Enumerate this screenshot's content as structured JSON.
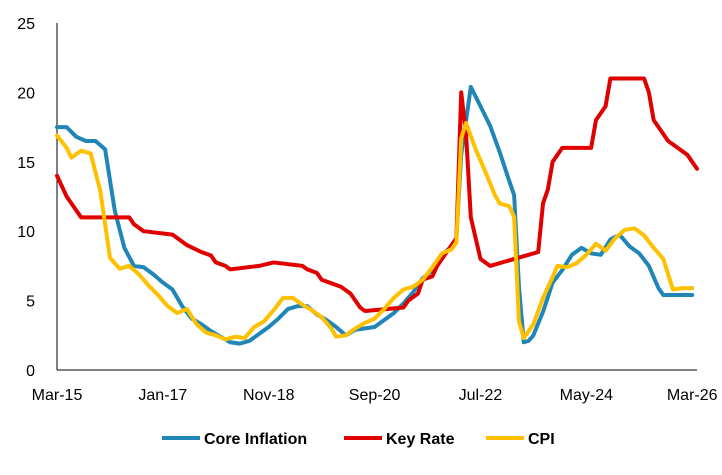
{
  "chart_data": {
    "type": "line",
    "title": "",
    "xlabel": "",
    "ylabel": "",
    "ylim": [
      0,
      25
    ],
    "yticks": [
      0,
      5,
      10,
      15,
      20,
      25
    ],
    "xticks": [
      "Mar-15",
      "Jan-17",
      "Nov-18",
      "Sep-20",
      "Jul-22",
      "May-24",
      "Mar-26"
    ],
    "grid": false,
    "legend_position": "bottom",
    "series": [
      {
        "name": "Core Inflation",
        "color": "#1f86b6",
        "points": [
          [
            "2015-03",
            17.5
          ],
          [
            "2015-05",
            17.5
          ],
          [
            "2015-07",
            16.8
          ],
          [
            "2015-09",
            16.5
          ],
          [
            "2015-11",
            16.5
          ],
          [
            "2016-01",
            15.9
          ],
          [
            "2016-03",
            11.5
          ],
          [
            "2016-05",
            8.8
          ],
          [
            "2016-07",
            7.5
          ],
          [
            "2016-09",
            7.4
          ],
          [
            "2016-11",
            6.9
          ],
          [
            "2017-01",
            6.3
          ],
          [
            "2017-03",
            5.8
          ],
          [
            "2017-05",
            4.6
          ],
          [
            "2017-07",
            3.7
          ],
          [
            "2017-09",
            3.3
          ],
          [
            "2017-11",
            2.8
          ],
          [
            "2018-01",
            2.4
          ],
          [
            "2018-03",
            2.0
          ],
          [
            "2018-05",
            1.9
          ],
          [
            "2018-07",
            2.1
          ],
          [
            "2018-09",
            2.6
          ],
          [
            "2018-11",
            3.1
          ],
          [
            "2019-01",
            3.7
          ],
          [
            "2019-03",
            4.4
          ],
          [
            "2019-05",
            4.6
          ],
          [
            "2019-07",
            4.6
          ],
          [
            "2019-09",
            4.0
          ],
          [
            "2019-11",
            3.6
          ],
          [
            "2020-01",
            3.1
          ],
          [
            "2020-03",
            2.5
          ],
          [
            "2020-05",
            2.9
          ],
          [
            "2020-07",
            3.0
          ],
          [
            "2020-09",
            3.1
          ],
          [
            "2020-11",
            3.6
          ],
          [
            "2021-01",
            4.1
          ],
          [
            "2021-03",
            4.8
          ],
          [
            "2021-05",
            5.6
          ],
          [
            "2021-07",
            6.6
          ],
          [
            "2021-09",
            7.2
          ],
          [
            "2021-11",
            8.3
          ],
          [
            "2022-01",
            8.9
          ],
          [
            "2022-02",
            9.5
          ],
          [
            "2022-03",
            15.5
          ],
          [
            "2022-05",
            20.4
          ],
          [
            "2022-07",
            19.0
          ],
          [
            "2022-09",
            17.6
          ],
          [
            "2022-11",
            15.7
          ],
          [
            "2023-01",
            13.6
          ],
          [
            "2023-02",
            12.6
          ],
          [
            "2023-03",
            6.0
          ],
          [
            "2023-04",
            2.0
          ],
          [
            "2023-05",
            2.1
          ],
          [
            "2023-06",
            2.5
          ],
          [
            "2023-08",
            4.2
          ],
          [
            "2023-10",
            6.3
          ],
          [
            "2023-12",
            7.2
          ],
          [
            "2024-02",
            8.3
          ],
          [
            "2024-04",
            8.8
          ],
          [
            "2024-06",
            8.4
          ],
          [
            "2024-08",
            8.3
          ],
          [
            "2024-10",
            9.4
          ],
          [
            "2024-11",
            9.6
          ],
          [
            "2024-12",
            9.7
          ],
          [
            "2025-02",
            8.9
          ],
          [
            "2025-04",
            8.4
          ],
          [
            "2025-06",
            7.5
          ],
          [
            "2025-08",
            5.9
          ],
          [
            "2025-09",
            5.4
          ],
          [
            "2026-03",
            5.4
          ]
        ]
      },
      {
        "name": "Key Rate",
        "color": "#e10000",
        "points": [
          [
            "2015-03",
            14.0
          ],
          [
            "2015-05",
            12.5
          ],
          [
            "2015-07",
            11.5
          ],
          [
            "2015-08",
            11.0
          ],
          [
            "2016-06",
            11.0
          ],
          [
            "2016-07",
            10.5
          ],
          [
            "2016-09",
            10.0
          ],
          [
            "2017-03",
            9.75
          ],
          [
            "2017-05",
            9.25
          ],
          [
            "2017-06",
            9.0
          ],
          [
            "2017-09",
            8.5
          ],
          [
            "2017-11",
            8.25
          ],
          [
            "2017-12",
            7.75
          ],
          [
            "2018-02",
            7.5
          ],
          [
            "2018-03",
            7.25
          ],
          [
            "2018-09",
            7.5
          ],
          [
            "2018-12",
            7.75
          ],
          [
            "2019-06",
            7.5
          ],
          [
            "2019-07",
            7.25
          ],
          [
            "2019-09",
            7.0
          ],
          [
            "2019-10",
            6.5
          ],
          [
            "2019-12",
            6.25
          ],
          [
            "2020-02",
            6.0
          ],
          [
            "2020-04",
            5.5
          ],
          [
            "2020-06",
            4.5
          ],
          [
            "2020-07",
            4.25
          ],
          [
            "2021-03",
            4.5
          ],
          [
            "2021-04",
            5.0
          ],
          [
            "2021-06",
            5.5
          ],
          [
            "2021-07",
            6.5
          ],
          [
            "2021-09",
            6.75
          ],
          [
            "2021-10",
            7.5
          ],
          [
            "2021-12",
            8.5
          ],
          [
            "2022-02",
            9.5
          ],
          [
            "2022-03",
            20.0
          ],
          [
            "2022-04",
            17.0
          ],
          [
            "2022-05",
            11.0
          ],
          [
            "2022-06",
            9.5
          ],
          [
            "2022-07",
            8.0
          ],
          [
            "2022-09",
            7.5
          ],
          [
            "2023-07",
            8.5
          ],
          [
            "2023-08",
            12.0
          ],
          [
            "2023-09",
            13.0
          ],
          [
            "2023-10",
            15.0
          ],
          [
            "2023-12",
            16.0
          ],
          [
            "2024-06",
            16.0
          ],
          [
            "2024-07",
            18.0
          ],
          [
            "2024-09",
            19.0
          ],
          [
            "2024-10",
            21.0
          ],
          [
            "2025-05",
            21.0
          ],
          [
            "2025-06",
            20.0
          ],
          [
            "2025-07",
            18.0
          ],
          [
            "2025-09",
            17.0
          ],
          [
            "2025-10",
            16.5
          ],
          [
            "2025-12",
            16.0
          ],
          [
            "2026-02",
            15.5
          ],
          [
            "2026-03",
            15.0
          ],
          [
            "2026-04",
            14.5
          ]
        ]
      },
      {
        "name": "CPI",
        "color": "#ffc000",
        "points": [
          [
            "2015-03",
            16.9
          ],
          [
            "2015-05",
            16.0
          ],
          [
            "2015-06",
            15.3
          ],
          [
            "2015-08",
            15.8
          ],
          [
            "2015-10",
            15.6
          ],
          [
            "2015-12",
            12.9
          ],
          [
            "2016-02",
            8.1
          ],
          [
            "2016-04",
            7.3
          ],
          [
            "2016-06",
            7.5
          ],
          [
            "2016-08",
            6.9
          ],
          [
            "2016-10",
            6.1
          ],
          [
            "2016-12",
            5.4
          ],
          [
            "2017-02",
            4.6
          ],
          [
            "2017-04",
            4.1
          ],
          [
            "2017-06",
            4.4
          ],
          [
            "2017-08",
            3.3
          ],
          [
            "2017-10",
            2.7
          ],
          [
            "2017-12",
            2.5
          ],
          [
            "2018-02",
            2.2
          ],
          [
            "2018-04",
            2.4
          ],
          [
            "2018-06",
            2.3
          ],
          [
            "2018-08",
            3.1
          ],
          [
            "2018-10",
            3.5
          ],
          [
            "2018-12",
            4.3
          ],
          [
            "2019-02",
            5.2
          ],
          [
            "2019-04",
            5.2
          ],
          [
            "2019-06",
            4.7
          ],
          [
            "2019-08",
            4.3
          ],
          [
            "2019-10",
            3.8
          ],
          [
            "2019-12",
            3.0
          ],
          [
            "2020-01",
            2.4
          ],
          [
            "2020-03",
            2.5
          ],
          [
            "2020-05",
            3.0
          ],
          [
            "2020-07",
            3.4
          ],
          [
            "2020-09",
            3.7
          ],
          [
            "2020-11",
            4.4
          ],
          [
            "2021-01",
            5.2
          ],
          [
            "2021-03",
            5.8
          ],
          [
            "2021-05",
            6.0
          ],
          [
            "2021-07",
            6.5
          ],
          [
            "2021-09",
            7.4
          ],
          [
            "2021-11",
            8.4
          ],
          [
            "2022-01",
            8.7
          ],
          [
            "2022-02",
            9.2
          ],
          [
            "2022-03",
            16.7
          ],
          [
            "2022-04",
            17.8
          ],
          [
            "2022-06",
            15.9
          ],
          [
            "2022-08",
            14.3
          ],
          [
            "2022-10",
            12.6
          ],
          [
            "2022-11",
            12.0
          ],
          [
            "2023-01",
            11.8
          ],
          [
            "2023-02",
            11.0
          ],
          [
            "2023-03",
            3.5
          ],
          [
            "2023-04",
            2.3
          ],
          [
            "2023-06",
            3.3
          ],
          [
            "2023-08",
            5.2
          ],
          [
            "2023-10",
            6.7
          ],
          [
            "2023-11",
            7.5
          ],
          [
            "2024-01",
            7.4
          ],
          [
            "2024-03",
            7.7
          ],
          [
            "2024-05",
            8.3
          ],
          [
            "2024-07",
            9.1
          ],
          [
            "2024-09",
            8.6
          ],
          [
            "2024-11",
            9.5
          ],
          [
            "2025-01",
            10.1
          ],
          [
            "2025-03",
            10.2
          ],
          [
            "2025-05",
            9.7
          ],
          [
            "2025-07",
            8.8
          ],
          [
            "2025-09",
            8.0
          ],
          [
            "2025-11",
            5.8
          ],
          [
            "2026-01",
            5.9
          ],
          [
            "2026-03",
            5.9
          ]
        ]
      }
    ]
  }
}
